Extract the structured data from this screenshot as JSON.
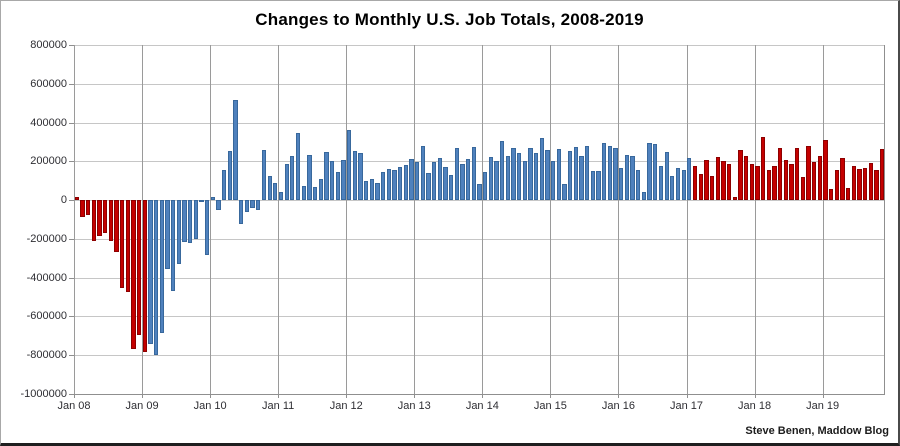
{
  "page": {
    "background": "#ffffff",
    "plot_border_color": "#9a9a9a",
    "hgrid_color": "#c6c6c6"
  },
  "chart_data": {
    "type": "bar",
    "title": "Changes to Monthly U.S. Job Totals, 2008-2019",
    "attribution": "Steve Benen, Maddow Blog",
    "xlabel": "",
    "ylabel": "",
    "ylim": [
      -1000000,
      800000
    ],
    "y_tick_interval": 200000,
    "grid": true,
    "legend": "none",
    "y_tick_labels": [
      "800000",
      "600000",
      "400000",
      "200000",
      "0",
      "-200000",
      "-400000",
      "-600000",
      "-800000",
      "-1000000"
    ],
    "x_tick_labels": [
      "Jan 08",
      "Jan 09",
      "Jan 10",
      "Jan 11",
      "Jan 12",
      "Jan 13",
      "Jan 14",
      "Jan 15",
      "Jan 16",
      "Jan 17",
      "Jan 18",
      "Jan 19"
    ],
    "colors": {
      "republican_fill": "#c40000",
      "republican_border": "#8d0000",
      "democrat_fill": "#4f81bd",
      "democrat_border": "#38689c"
    },
    "color_rule": {
      "red_through_month": "2009-01",
      "red_from_month": "2017-02",
      "note": "red = months under Bush and Trump, blue = months under Obama"
    },
    "months": [
      "2008-01",
      "2008-02",
      "2008-03",
      "2008-04",
      "2008-05",
      "2008-06",
      "2008-07",
      "2008-08",
      "2008-09",
      "2008-10",
      "2008-11",
      "2008-12",
      "2009-01",
      "2009-02",
      "2009-03",
      "2009-04",
      "2009-05",
      "2009-06",
      "2009-07",
      "2009-08",
      "2009-09",
      "2009-10",
      "2009-11",
      "2009-12",
      "2010-01",
      "2010-02",
      "2010-03",
      "2010-04",
      "2010-05",
      "2010-06",
      "2010-07",
      "2010-08",
      "2010-09",
      "2010-10",
      "2010-11",
      "2010-12",
      "2011-01",
      "2011-02",
      "2011-03",
      "2011-04",
      "2011-05",
      "2011-06",
      "2011-07",
      "2011-08",
      "2011-09",
      "2011-10",
      "2011-11",
      "2011-12",
      "2012-01",
      "2012-02",
      "2012-03",
      "2012-04",
      "2012-05",
      "2012-06",
      "2012-07",
      "2012-08",
      "2012-09",
      "2012-10",
      "2012-11",
      "2012-12",
      "2013-01",
      "2013-02",
      "2013-03",
      "2013-04",
      "2013-05",
      "2013-06",
      "2013-07",
      "2013-08",
      "2013-09",
      "2013-10",
      "2013-11",
      "2013-12",
      "2014-01",
      "2014-02",
      "2014-03",
      "2014-04",
      "2014-05",
      "2014-06",
      "2014-07",
      "2014-08",
      "2014-09",
      "2014-10",
      "2014-11",
      "2014-12",
      "2015-01",
      "2015-02",
      "2015-03",
      "2015-04",
      "2015-05",
      "2015-06",
      "2015-07",
      "2015-08",
      "2015-09",
      "2015-10",
      "2015-11",
      "2015-12",
      "2016-01",
      "2016-02",
      "2016-03",
      "2016-04",
      "2016-05",
      "2016-06",
      "2016-07",
      "2016-08",
      "2016-09",
      "2016-10",
      "2016-11",
      "2016-12",
      "2017-01",
      "2017-02",
      "2017-03",
      "2017-04",
      "2017-05",
      "2017-06",
      "2017-07",
      "2017-08",
      "2017-09",
      "2017-10",
      "2017-11",
      "2017-12",
      "2018-01",
      "2018-02",
      "2018-03",
      "2018-04",
      "2018-05",
      "2018-06",
      "2018-07",
      "2018-08",
      "2018-09",
      "2018-10",
      "2018-11",
      "2018-12",
      "2019-01",
      "2019-02",
      "2019-03",
      "2019-04",
      "2019-05",
      "2019-06",
      "2019-07",
      "2019-08",
      "2019-09",
      "2019-10",
      "2019-11"
    ],
    "values": [
      18000,
      -86000,
      -78000,
      -210000,
      -185000,
      -169000,
      -213000,
      -266000,
      -452000,
      -475000,
      -769000,
      -695000,
      -784000,
      -743000,
      -800000,
      -686000,
      -354000,
      -467000,
      -327000,
      -216000,
      -219000,
      -200000,
      -7000,
      -283000,
      18000,
      -50000,
      156000,
      251000,
      516000,
      -122000,
      -61000,
      -42000,
      -52000,
      257000,
      123000,
      88000,
      42000,
      188000,
      225000,
      346000,
      73000,
      235000,
      70000,
      107000,
      246000,
      202000,
      146000,
      207000,
      360000,
      254000,
      243000,
      96000,
      110000,
      88000,
      143000,
      161000,
      156000,
      171000,
      180000,
      214000,
      197000,
      280000,
      141000,
      199000,
      219000,
      172000,
      130000,
      269000,
      184000,
      212000,
      274000,
      84000,
      144000,
      222000,
      203000,
      304000,
      229000,
      267000,
      243000,
      203000,
      271000,
      243000,
      321000,
      256000,
      201000,
      266000,
      84000,
      251000,
      273000,
      228000,
      277000,
      150000,
      149000,
      295000,
      280000,
      271000,
      168000,
      233000,
      225000,
      153000,
      43000,
      297000,
      291000,
      176000,
      249000,
      124000,
      164000,
      155000,
      216000,
      175000,
      135000,
      207000,
      125000,
      222000,
      200000,
      185000,
      18000,
      261000,
      225000,
      185000,
      176000,
      324000,
      155000,
      175000,
      268000,
      208000,
      184000,
      270000,
      119000,
      277000,
      196000,
      227000,
      312000,
      56000,
      153000,
      216000,
      62000,
      178000,
      159000,
      168000,
      193000,
      156000,
      266000
    ]
  }
}
